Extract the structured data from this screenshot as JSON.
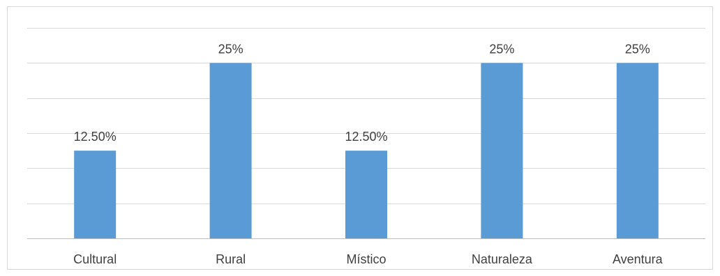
{
  "chart_data": {
    "type": "bar",
    "categories": [
      "Cultural",
      "Rural",
      "Místico",
      "Naturaleza",
      "Aventura"
    ],
    "values": [
      12.5,
      25,
      12.5,
      25,
      25
    ],
    "data_labels": [
      "12.50%",
      "25%",
      "12.50%",
      "25%",
      "25%"
    ],
    "ylim": [
      0,
      30
    ],
    "ytick_step": 5,
    "grid": true,
    "legend": "none",
    "bar_color": "#5b9bd5",
    "grid_color": "#d9d9d9"
  }
}
